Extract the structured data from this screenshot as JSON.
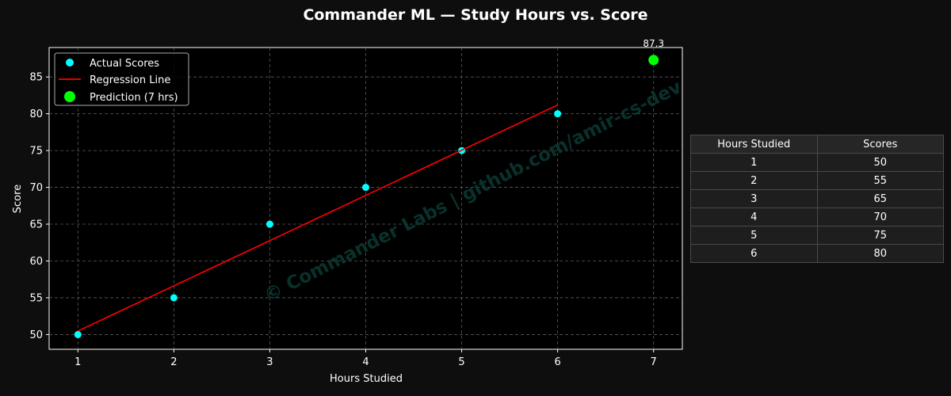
{
  "chart_data": {
    "type": "scatter",
    "title": "Commander ML — Study Hours vs. Score",
    "xlabel": "Hours Studied",
    "ylabel": "Score",
    "xlim": [
      0.7,
      7.3
    ],
    "ylim": [
      48,
      89
    ],
    "xticks": [
      "1",
      "2",
      "3",
      "4",
      "5",
      "6",
      "7"
    ],
    "yticks": [
      "50",
      "55",
      "60",
      "65",
      "70",
      "75",
      "80",
      "85"
    ],
    "grid": true,
    "legend_position": "top-left",
    "series": [
      {
        "name": "Actual Scores",
        "kind": "scatter",
        "color": "#00ffff",
        "x": [
          1,
          2,
          3,
          4,
          5,
          6
        ],
        "y": [
          50,
          55,
          65,
          70,
          75,
          80
        ]
      },
      {
        "name": "Regression Line",
        "kind": "line",
        "color": "#ff0000",
        "x": [
          1,
          6
        ],
        "y": [
          50.48,
          81.19
        ]
      },
      {
        "name": "Prediction (7 hrs)",
        "kind": "scatter",
        "color": "#00ff00",
        "x": [
          7
        ],
        "y": [
          87.3
        ]
      }
    ],
    "annotations": [
      {
        "text": "87.3",
        "x": 7,
        "y": 87.3
      }
    ],
    "watermark": "© Commander Labs | github.com/amir-cs-dev",
    "table": {
      "columns": [
        "Hours Studied",
        "Scores"
      ],
      "rows": [
        [
          "1",
          "50"
        ],
        [
          "2",
          "55"
        ],
        [
          "3",
          "65"
        ],
        [
          "4",
          "70"
        ],
        [
          "5",
          "75"
        ],
        [
          "6",
          "80"
        ]
      ]
    }
  }
}
